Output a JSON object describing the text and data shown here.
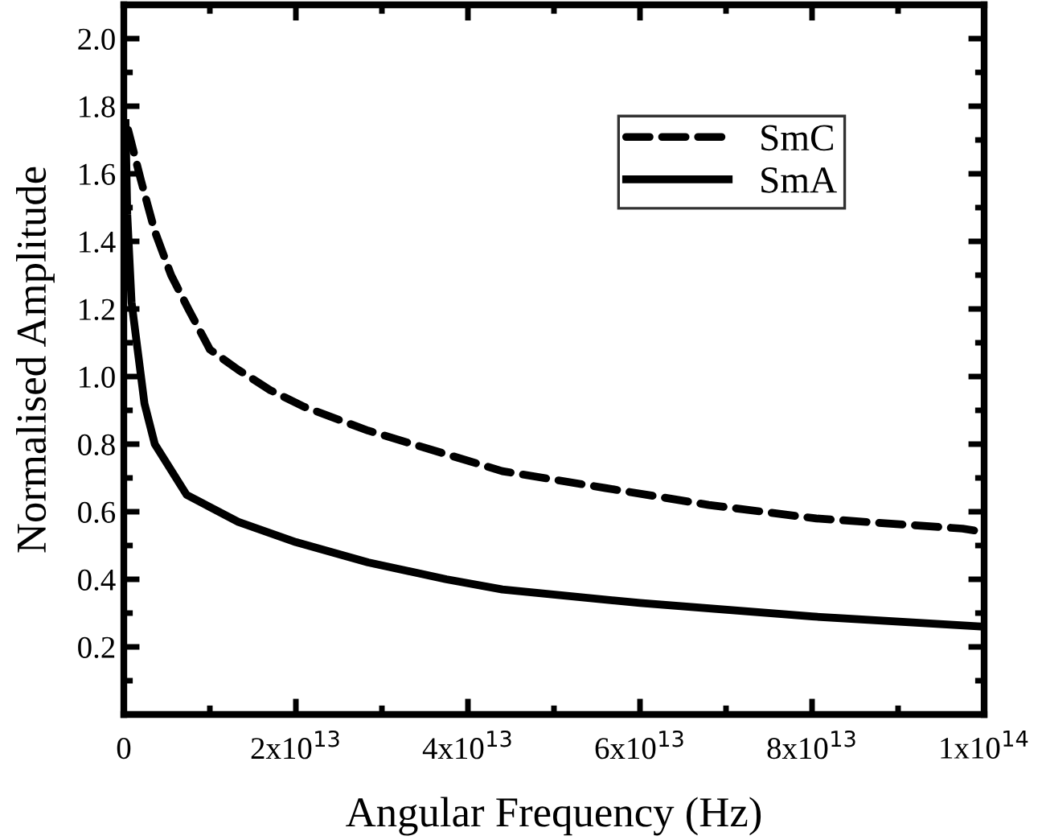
{
  "chart_data": {
    "type": "line",
    "xlabel": "Angular Frequency (Hz)",
    "ylabel": "Normalised Amplitude",
    "xlim": [
      0,
      100000000000000.0
    ],
    "ylim": [
      0,
      2.1
    ],
    "xticks": [
      {
        "value": 0,
        "label": "0"
      },
      {
        "value": 20000000000000.0,
        "label": "2x10$^{13}$"
      },
      {
        "value": 40000000000000.0,
        "label": "4x10$^{13}$"
      },
      {
        "value": 60000000000000.0,
        "label": "6x10$^{13}$"
      },
      {
        "value": 80000000000000.0,
        "label": "8x10$^{13}$"
      },
      {
        "value": 100000000000000.0,
        "label": "1x10$^{14}$"
      }
    ],
    "yticks": [
      {
        "value": 0.2,
        "label": "0.2"
      },
      {
        "value": 0.4,
        "label": "0.4"
      },
      {
        "value": 0.6,
        "label": "0.6"
      },
      {
        "value": 0.8,
        "label": "0.8"
      },
      {
        "value": 1.0,
        "label": "1.0"
      },
      {
        "value": 1.2,
        "label": "1.2"
      },
      {
        "value": 1.4,
        "label": "1.4"
      },
      {
        "value": 1.6,
        "label": "1.6"
      },
      {
        "value": 1.8,
        "label": "1.8"
      },
      {
        "value": 2.0,
        "label": "2.0"
      }
    ],
    "legend": "top right",
    "grid": false,
    "series": [
      {
        "name": "SmC",
        "color": "#000000",
        "line_style": "dashed",
        "x": [
          500000000000.0,
          900000000000.0,
          2000000000000.0,
          3600000000000.0,
          5500000000000.0,
          7500000000000.0,
          10000000000000.0,
          13300000000000.0,
          17000000000000.0,
          21000000000000.0,
          28400000000000.0,
          37500000000000.0,
          44000000000000.0,
          56000000000000.0,
          68000000000000.0,
          80500000000000.0,
          97500000000000.0,
          100000000000000.0
        ],
        "values": [
          1.73,
          1.69,
          1.58,
          1.43,
          1.3,
          1.2,
          1.08,
          1.02,
          0.96,
          0.91,
          0.84,
          0.77,
          0.72,
          0.67,
          0.62,
          0.58,
          0.55,
          0.54
        ]
      },
      {
        "name": "SmA",
        "color": "#000000",
        "line_style": "solid",
        "x": [
          200000000000.0,
          400000000000.0,
          900000000000.0,
          2000000000000.0,
          2400000000000.0,
          3600000000000.0,
          7300000000000.0,
          13300000000000.0,
          20000000000000.0,
          28400000000000.0,
          37500000000000.0,
          44000000000000.0,
          60000000000000.0,
          80000000000000.0,
          100000000000000.0
        ],
        "values": [
          1.75,
          1.48,
          1.22,
          1.0,
          0.92,
          0.8,
          0.65,
          0.57,
          0.51,
          0.45,
          0.4,
          0.37,
          0.33,
          0.29,
          0.26
        ]
      }
    ]
  }
}
